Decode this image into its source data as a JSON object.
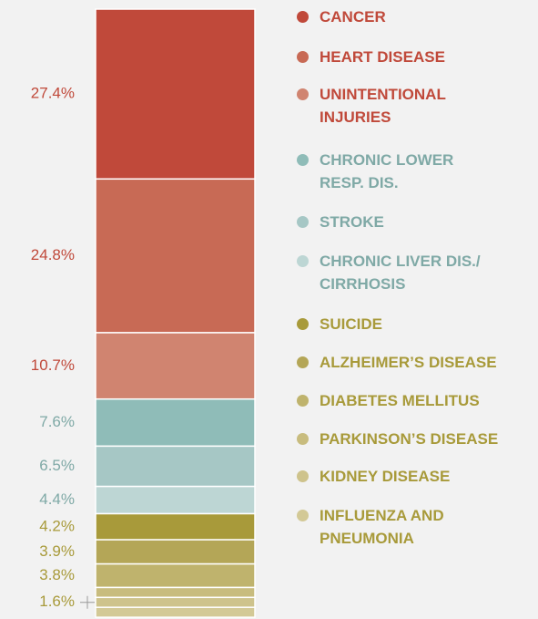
{
  "chart_data": {
    "type": "stacked-bar",
    "categories": [
      "CANCER",
      "HEART DISEASE",
      "UNINTENTIONAL\nINJURIES",
      "CHRONIC LOWER\nRESP. DIS.",
      "STROKE",
      "CHRONIC LIVER DIS./\nCIRRHOSIS",
      "SUICIDE",
      "ALZHEIMER’S DISEASE",
      "DIABETES MELLITUS",
      "PARKINSON’S DISEASE",
      "KIDNEY DISEASE",
      "INFLUENZA AND\nPNEUMONIA"
    ],
    "values": [
      27.4,
      24.8,
      10.7,
      7.6,
      6.5,
      4.4,
      4.2,
      3.9,
      3.8,
      1.6,
      1.6,
      1.6
    ],
    "value_labels": [
      "27.4%",
      "24.8%",
      "10.7%",
      "7.6%",
      "6.5%",
      "4.4%",
      "4.2%",
      "3.9%",
      "3.8%",
      "1.6%",
      null,
      null
    ],
    "colors": [
      "#c0493a",
      "#c86a55",
      "#d08470",
      "#8fbcb8",
      "#a6c7c5",
      "#bdd6d4",
      "#a89a3a",
      "#b4a657",
      "#bfb36d",
      "#c8bc7e",
      "#cec38c",
      "#d3c996"
    ],
    "label_colors": [
      "#c0493a",
      "#c0493a",
      "#c0493a",
      "#7fa9a6",
      "#7fa9a6",
      "#7fa9a6",
      "#a89a3a",
      "#a89a3a",
      "#a89a3a",
      "#a89a3a",
      "#a89a3a",
      "#a89a3a"
    ]
  }
}
